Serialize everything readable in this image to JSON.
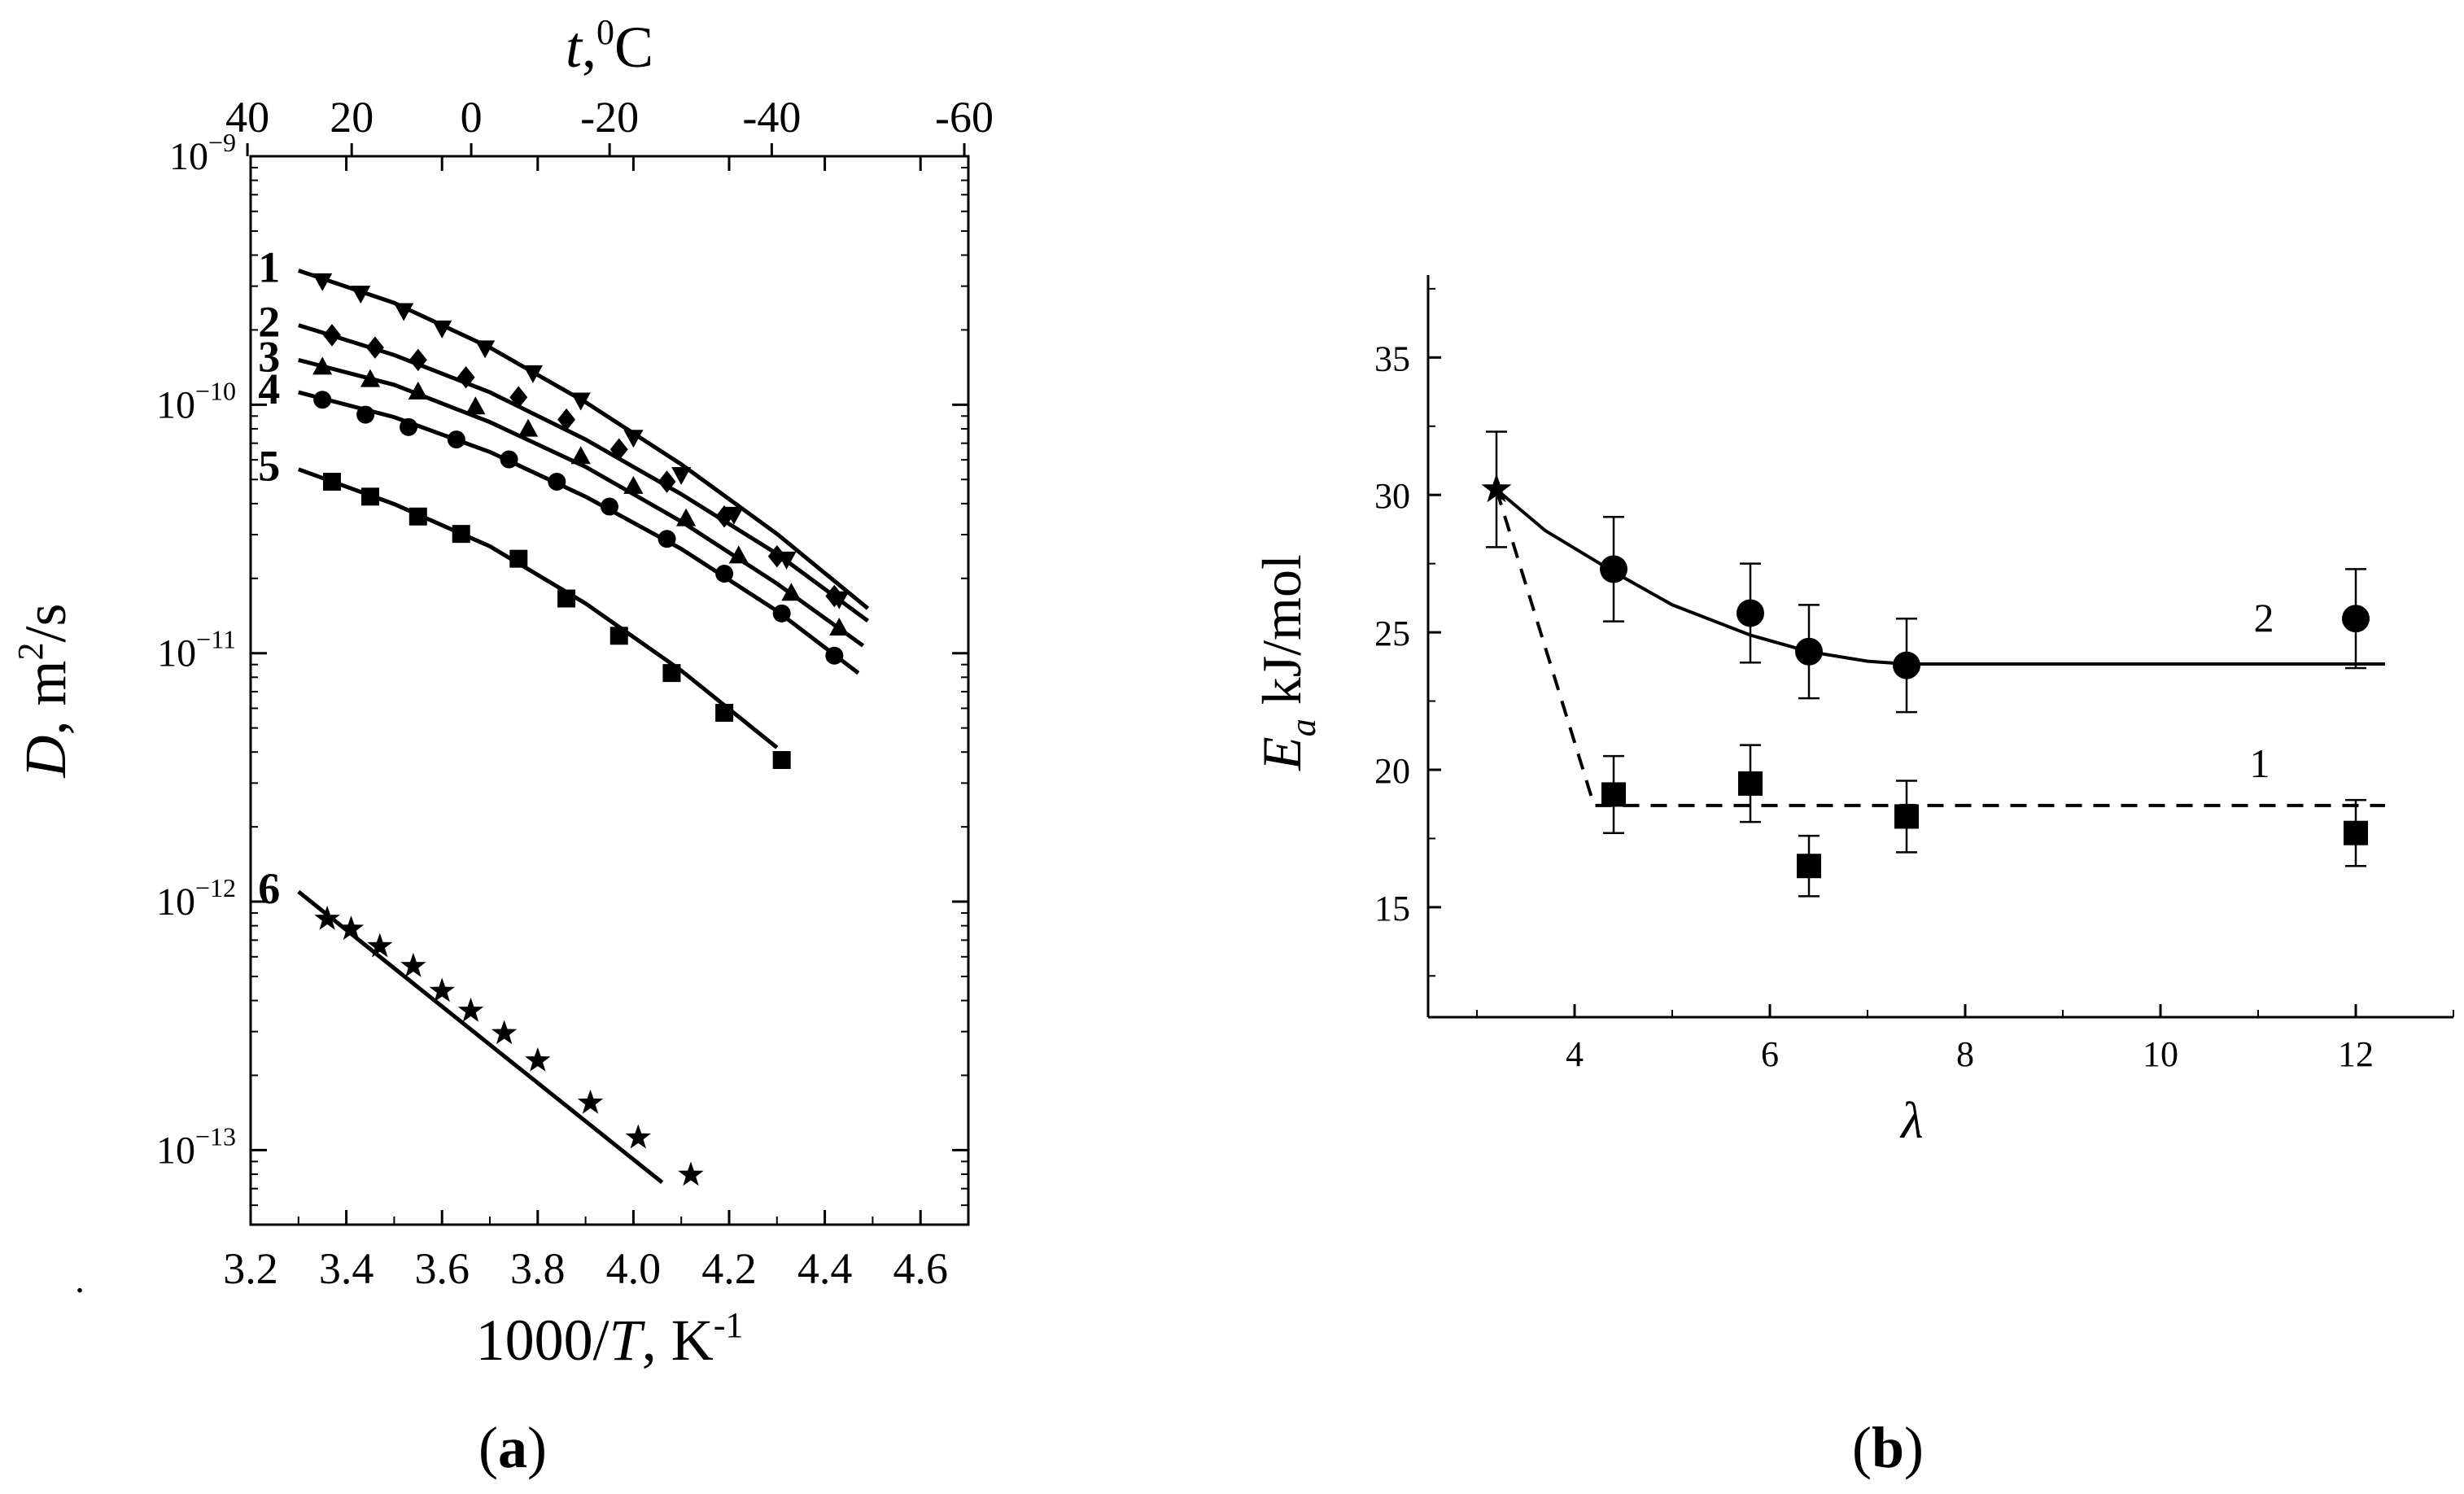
{
  "panel_a_caption_letter": "a",
  "panel_b_caption_letter": "b",
  "caption_paren_open": "(",
  "caption_paren_close": ")",
  "stray_mark": ".",
  "colors": {
    "ink": "#000000",
    "axis": "#000000",
    "grid_tick": "#000000"
  },
  "chart_data": [
    {
      "id": "panel-a",
      "type": "scatter",
      "title": "",
      "xlabel": "1000/T, K⁻¹",
      "xlabel_parts": {
        "pre": "1000/",
        "var": "T",
        "post": ", K",
        "sup": "-1"
      },
      "ylabel_parts": {
        "var": "D",
        "post": ", m",
        "sup": "2",
        "post2": "/s"
      },
      "top_label_parts": {
        "var": "t",
        "post": ",",
        "sup": "0",
        "post2": "C"
      },
      "y_scale": "log",
      "xlim": [
        3.2,
        4.7
      ],
      "ylim_exponent": [
        -13.3,
        -9
      ],
      "x_ticks": [
        "3.2",
        "3.4",
        "3.6",
        "3.8",
        "4.0",
        "4.2",
        "4.4",
        "4.6"
      ],
      "y_ticks": [
        {
          "base": "10",
          "exp": "−9",
          "value": -9
        },
        {
          "base": "10",
          "exp": "−10",
          "value": -10
        },
        {
          "base": "10",
          "exp": "−11",
          "value": -11
        },
        {
          "base": "10",
          "exp": "−12",
          "value": -12
        },
        {
          "base": "10",
          "exp": "−13",
          "value": -13
        }
      ],
      "top_ticks": [
        "40",
        "20",
        "0",
        "-20",
        "-40",
        "-60"
      ],
      "top_tick_values_celsius": [
        40,
        20,
        0,
        -20,
        -40,
        -60
      ],
      "series": [
        {
          "label": "1",
          "marker": "triangle-down",
          "line": "solid",
          "points": [
            [
              3.35,
              -9.5
            ],
            [
              3.43,
              -9.55
            ],
            [
              3.52,
              -9.62
            ],
            [
              3.6,
              -9.69
            ],
            [
              3.69,
              -9.77
            ],
            [
              3.79,
              -9.87
            ],
            [
              3.89,
              -9.98
            ],
            [
              4.0,
              -10.13
            ],
            [
              4.1,
              -10.28
            ],
            [
              4.21,
              -10.44
            ],
            [
              4.32,
              -10.62
            ],
            [
              4.43,
              -10.78
            ]
          ],
          "line_points": [
            [
              3.3,
              -9.46
            ],
            [
              3.5,
              -9.59
            ],
            [
              3.7,
              -9.77
            ],
            [
              3.9,
              -9.99
            ],
            [
              4.1,
              -10.24
            ],
            [
              4.3,
              -10.52
            ],
            [
              4.49,
              -10.82
            ]
          ]
        },
        {
          "label": "2",
          "marker": "diamond",
          "line": "solid",
          "points": [
            [
              3.37,
              -9.72
            ],
            [
              3.46,
              -9.77
            ],
            [
              3.55,
              -9.82
            ],
            [
              3.65,
              -9.89
            ],
            [
              3.76,
              -9.97
            ],
            [
              3.86,
              -10.06
            ],
            [
              3.97,
              -10.18
            ],
            [
              4.07,
              -10.31
            ],
            [
              4.19,
              -10.45
            ],
            [
              4.3,
              -10.61
            ],
            [
              4.42,
              -10.77
            ]
          ],
          "line_points": [
            [
              3.3,
              -9.68
            ],
            [
              3.5,
              -9.8
            ],
            [
              3.7,
              -9.95
            ],
            [
              3.9,
              -10.14
            ],
            [
              4.1,
              -10.36
            ],
            [
              4.3,
              -10.6
            ],
            [
              4.49,
              -10.87
            ]
          ]
        },
        {
          "label": "3",
          "marker": "triangle-up",
          "line": "solid",
          "points": [
            [
              3.35,
              -9.85
            ],
            [
              3.45,
              -9.9
            ],
            [
              3.55,
              -9.95
            ],
            [
              3.67,
              -10.01
            ],
            [
              3.78,
              -10.1
            ],
            [
              3.89,
              -10.21
            ],
            [
              4.0,
              -10.33
            ],
            [
              4.11,
              -10.46
            ],
            [
              4.22,
              -10.61
            ],
            [
              4.33,
              -10.76
            ],
            [
              4.43,
              -10.9
            ]
          ],
          "line_points": [
            [
              3.3,
              -9.82
            ],
            [
              3.5,
              -9.92
            ],
            [
              3.7,
              -10.07
            ],
            [
              3.9,
              -10.25
            ],
            [
              4.1,
              -10.47
            ],
            [
              4.3,
              -10.72
            ],
            [
              4.48,
              -10.97
            ]
          ]
        },
        {
          "label": "4",
          "marker": "circle",
          "line": "solid",
          "points": [
            [
              3.35,
              -9.98
            ],
            [
              3.44,
              -10.04
            ],
            [
              3.53,
              -10.09
            ],
            [
              3.63,
              -10.14
            ],
            [
              3.74,
              -10.22
            ],
            [
              3.84,
              -10.31
            ],
            [
              3.95,
              -10.41
            ],
            [
              4.07,
              -10.54
            ],
            [
              4.19,
              -10.68
            ],
            [
              4.31,
              -10.84
            ],
            [
              4.42,
              -11.01
            ]
          ],
          "line_points": [
            [
              3.3,
              -9.95
            ],
            [
              3.5,
              -10.05
            ],
            [
              3.7,
              -10.19
            ],
            [
              3.9,
              -10.37
            ],
            [
              4.1,
              -10.58
            ],
            [
              4.3,
              -10.83
            ],
            [
              4.47,
              -11.08
            ]
          ]
        },
        {
          "label": "5",
          "marker": "square",
          "line": "solid",
          "points": [
            [
              3.37,
              -10.31
            ],
            [
              3.45,
              -10.37
            ],
            [
              3.55,
              -10.45
            ],
            [
              3.64,
              -10.52
            ],
            [
              3.76,
              -10.62
            ],
            [
              3.86,
              -10.78
            ],
            [
              3.97,
              -10.93
            ],
            [
              4.08,
              -11.08
            ],
            [
              4.19,
              -11.24
            ],
            [
              4.31,
              -11.43
            ]
          ],
          "line_points": [
            [
              3.3,
              -10.26
            ],
            [
              3.5,
              -10.4
            ],
            [
              3.7,
              -10.57
            ],
            [
              3.9,
              -10.8
            ],
            [
              4.1,
              -11.07
            ],
            [
              4.3,
              -11.38
            ]
          ]
        },
        {
          "label": "6",
          "marker": "star",
          "line": "solid",
          "points": [
            [
              3.36,
              -12.07
            ],
            [
              3.41,
              -12.11
            ],
            [
              3.47,
              -12.18
            ],
            [
              3.54,
              -12.26
            ],
            [
              3.6,
              -12.36
            ],
            [
              3.66,
              -12.44
            ],
            [
              3.73,
              -12.53
            ],
            [
              3.8,
              -12.64
            ],
            [
              3.91,
              -12.81
            ],
            [
              4.01,
              -12.95
            ],
            [
              4.12,
              -13.1
            ]
          ],
          "line_points": [
            [
              3.3,
              -11.96
            ],
            [
              4.06,
              -13.13
            ]
          ]
        }
      ]
    },
    {
      "id": "panel-b",
      "type": "scatter",
      "title": "",
      "xlabel": "λ",
      "ylabel": "E_a kJ/mol",
      "ylabel_parts": {
        "var": "E",
        "sub": "a",
        "post": " kJ/mol"
      },
      "xlim": [
        2.5,
        13.0
      ],
      "ylim": [
        11.0,
        38.0
      ],
      "x_ticks": [
        "4",
        "6",
        "8",
        "10",
        "12"
      ],
      "x_tick_values": [
        4,
        6,
        8,
        10,
        12
      ],
      "y_ticks": [
        "15",
        "20",
        "25",
        "30",
        "35"
      ],
      "y_tick_values": [
        15,
        20,
        25,
        30,
        35
      ],
      "series": [
        {
          "name": "2",
          "label": "2",
          "marker": "circle",
          "line": "solid",
          "x": [
            4.4,
            5.8,
            6.4,
            7.4,
            12.0
          ],
          "values": [
            27.3,
            25.7,
            24.3,
            23.8,
            25.5
          ],
          "error": [
            1.9,
            1.8,
            1.7,
            1.7,
            1.8
          ],
          "fit_points": [
            [
              3.2,
              30.2
            ],
            [
              3.7,
              28.7
            ],
            [
              4.4,
              27.2
            ],
            [
              5.0,
              26.0
            ],
            [
              5.8,
              24.9
            ],
            [
              6.4,
              24.3
            ],
            [
              7.0,
              23.95
            ],
            [
              7.4,
              23.85
            ],
            [
              8.0,
              23.85
            ],
            [
              12.3,
              23.85
            ]
          ]
        },
        {
          "name": "1",
          "label": "1",
          "marker": "square",
          "line": "dashed",
          "x": [
            4.4,
            5.8,
            6.4,
            7.4,
            12.0
          ],
          "values": [
            19.1,
            19.5,
            16.5,
            18.3,
            17.7
          ],
          "error": [
            1.4,
            1.4,
            1.1,
            1.3,
            1.2
          ],
          "fit_points": [
            [
              3.2,
              30.2
            ],
            [
              4.2,
              18.7
            ],
            [
              12.3,
              18.7
            ]
          ]
        },
        {
          "name": "shared-start",
          "label": "",
          "marker": "star",
          "line": "none",
          "x": [
            3.2
          ],
          "values": [
            30.2
          ],
          "error": [
            2.1
          ]
        }
      ]
    }
  ]
}
